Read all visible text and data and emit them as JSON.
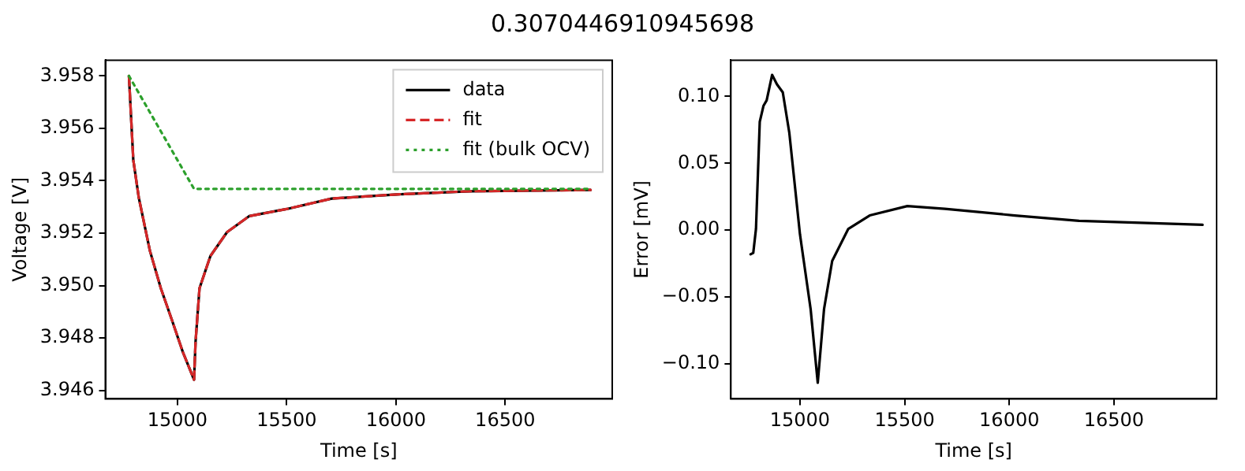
{
  "chart_data": [
    {
      "type": "line",
      "title": "0.3070446910945698",
      "xlabel": "Time [s]",
      "ylabel": "Voltage [V]",
      "xlim": [
        14670,
        16990
      ],
      "ylim": [
        3.94568,
        3.9586
      ],
      "xticks": [
        15000,
        15500,
        16000,
        16500
      ],
      "yticks": [
        {
          "value": 3.946,
          "label": "3.946"
        },
        {
          "value": 3.948,
          "label": "3.948"
        },
        {
          "value": 3.95,
          "label": "3.950"
        },
        {
          "value": 3.952,
          "label": "3.952"
        },
        {
          "value": 3.954,
          "label": "3.954"
        },
        {
          "value": 3.956,
          "label": "3.956"
        },
        {
          "value": 3.958,
          "label": "3.958"
        }
      ],
      "grid": false,
      "legend": "top right",
      "marker": "none",
      "series": [
        {
          "name": "data",
          "color": "#000000",
          "line_style": "solid",
          "x": [
            14778,
            14798,
            14823,
            14874,
            14924,
            14975,
            15025,
            15076,
            15083,
            15101,
            15151,
            15227,
            15328,
            15499,
            15706,
            16004,
            16336,
            16891
          ],
          "values": [
            3.958,
            3.95479,
            3.95336,
            3.95133,
            3.9499,
            3.94868,
            3.94746,
            3.94641,
            3.94787,
            3.9499,
            3.95113,
            3.95204,
            3.95265,
            3.95292,
            3.95332,
            3.95348,
            3.9536,
            3.95365
          ]
        },
        {
          "name": "fit",
          "color": "#d62728",
          "line_style": "dashed",
          "x": [
            14778,
            14798,
            14823,
            14874,
            14924,
            14975,
            15025,
            15076,
            15083,
            15101,
            15151,
            15227,
            15328,
            15499,
            15706,
            16004,
            16336,
            16891
          ],
          "values": [
            3.958,
            3.95479,
            3.95336,
            3.95133,
            3.9499,
            3.94868,
            3.94746,
            3.94641,
            3.94787,
            3.9499,
            3.95113,
            3.95204,
            3.95265,
            3.95292,
            3.95332,
            3.95348,
            3.9536,
            3.95365
          ]
        },
        {
          "name": "fit (bulk OCV)",
          "color": "#2ca02c",
          "line_style": "dotted",
          "x": [
            14778,
            15076,
            16891
          ],
          "values": [
            3.958,
            3.95369,
            3.95369
          ]
        }
      ]
    },
    {
      "type": "line",
      "xlabel": "Time [s]",
      "ylabel": "Error [mV]",
      "xlim": [
        14670,
        16990
      ],
      "ylim": [
        -0.126,
        0.127
      ],
      "xticks": [
        15000,
        15500,
        16000,
        16500
      ],
      "yticks": [
        {
          "value": -0.1,
          "label": "−0.10"
        },
        {
          "value": -0.05,
          "label": "−0.05"
        },
        {
          "value": 0,
          "label": "0.00"
        },
        {
          "value": 0.05,
          "label": "0.05"
        },
        {
          "value": 0.1,
          "label": "0.10"
        }
      ],
      "grid": false,
      "legend": false,
      "marker": "none",
      "series": [
        {
          "color": "#000000",
          "line_style": "solid",
          "x": [
            14764,
            14777,
            14790,
            14808,
            14826,
            14841,
            14867,
            14890,
            14918,
            14949,
            15000,
            15051,
            15085,
            15115,
            15154,
            15231,
            15333,
            15513,
            15692,
            16026,
            16333,
            16923
          ],
          "values": [
            -0.018,
            -0.017,
            0.001,
            0.081,
            0.093,
            0.097,
            0.116,
            0.109,
            0.103,
            0.073,
            -0.003,
            -0.059,
            -0.114,
            -0.059,
            -0.023,
            0.001,
            0.011,
            0.018,
            0.016,
            0.011,
            0.007,
            0.004
          ]
        }
      ]
    }
  ]
}
